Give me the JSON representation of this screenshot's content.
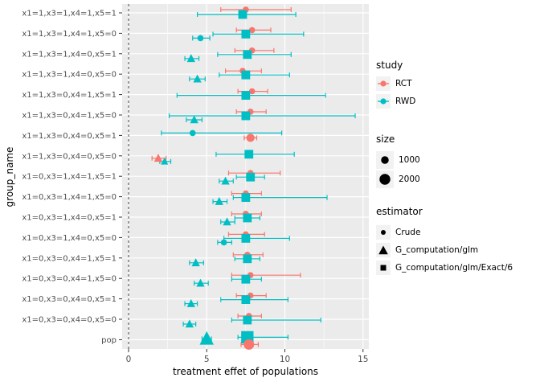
{
  "chart_data": {
    "type": "scatter",
    "title": "",
    "xlabel": "treatment effet of populations",
    "ylabel": "group_name",
    "x_ticks": [
      0,
      5,
      10,
      15
    ],
    "xlim": [
      -0.5,
      15.5
    ],
    "ref_line_x": 0,
    "grid": true,
    "legend_position": "right",
    "colors": {
      "RCT": "#F8766D",
      "RWD": "#00BFC4",
      "panel": "#EBEBEB",
      "grid": "#FFFFFF",
      "axis_text": "#4D4D4D",
      "shape_black": "#000000"
    },
    "shape_map": {
      "Crude": "circle",
      "G_computation/glm": "triangle",
      "G_computation/glm/Exact/6": "square"
    },
    "rows": [
      {
        "label": "x1=1,x3=1,x4=1,x5=1",
        "points": [
          {
            "study": "RCT",
            "estimator": "Crude",
            "x": 7.5,
            "lo": 5.9,
            "hi": 10.4,
            "size": 900,
            "dy": -4
          },
          {
            "study": "RWD",
            "estimator": "G_computation/glm/Exact/6",
            "x": 7.3,
            "lo": 4.4,
            "hi": 10.7,
            "size": 1300,
            "dy": 2
          }
        ]
      },
      {
        "label": "x1=1,x3=1,x4=1,x5=0",
        "points": [
          {
            "study": "RCT",
            "estimator": "Crude",
            "x": 7.9,
            "lo": 6.9,
            "hi": 9.1,
            "size": 900,
            "dy": -4
          },
          {
            "study": "RWD",
            "estimator": "Crude",
            "x": 4.6,
            "lo": 4.1,
            "hi": 5.2,
            "size": 900,
            "dy": 6
          },
          {
            "study": "RWD",
            "estimator": "G_computation/glm/Exact/6",
            "x": 7.5,
            "lo": 5.4,
            "hi": 11.2,
            "size": 1300,
            "dy": 1
          }
        ]
      },
      {
        "label": "x1=1,x3=1,x4=0,x5=1",
        "points": [
          {
            "study": "RCT",
            "estimator": "Crude",
            "x": 7.9,
            "lo": 6.8,
            "hi": 9.3,
            "size": 900,
            "dy": -4
          },
          {
            "study": "RWD",
            "estimator": "G_computation/glm",
            "x": 4.0,
            "lo": 3.6,
            "hi": 4.5,
            "size": 900,
            "dy": 6
          },
          {
            "study": "RWD",
            "estimator": "G_computation/glm/Exact/6",
            "x": 7.6,
            "lo": 5.7,
            "hi": 10.4,
            "size": 1300,
            "dy": 1
          }
        ]
      },
      {
        "label": "x1=1,x3=1,x4=0,x5=0",
        "points": [
          {
            "study": "RCT",
            "estimator": "Crude",
            "x": 7.3,
            "lo": 6.2,
            "hi": 8.5,
            "size": 900,
            "dy": -4
          },
          {
            "study": "RWD",
            "estimator": "G_computation/glm",
            "x": 4.4,
            "lo": 3.9,
            "hi": 4.9,
            "size": 900,
            "dy": 6
          },
          {
            "study": "RWD",
            "estimator": "G_computation/glm/Exact/6",
            "x": 7.5,
            "lo": 5.8,
            "hi": 10.3,
            "size": 1300,
            "dy": 1
          }
        ]
      },
      {
        "label": "x1=1,x3=0,x4=1,x5=1",
        "points": [
          {
            "study": "RCT",
            "estimator": "Crude",
            "x": 7.9,
            "lo": 7.0,
            "hi": 8.9,
            "size": 900,
            "dy": -4
          },
          {
            "study": "RWD",
            "estimator": "G_computation/glm/Exact/6",
            "x": 7.5,
            "lo": 3.1,
            "hi": 12.6,
            "size": 1300,
            "dy": 1
          }
        ]
      },
      {
        "label": "x1=1,x3=0,x4=1,x5=0",
        "points": [
          {
            "study": "RCT",
            "estimator": "Crude",
            "x": 7.8,
            "lo": 6.9,
            "hi": 8.8,
            "size": 900,
            "dy": -4
          },
          {
            "study": "RWD",
            "estimator": "G_computation/glm",
            "x": 4.2,
            "lo": 3.7,
            "hi": 4.7,
            "size": 900,
            "dy": 6
          },
          {
            "study": "RWD",
            "estimator": "G_computation/glm/Exact/6",
            "x": 7.5,
            "lo": 2.6,
            "hi": 14.5,
            "size": 1300,
            "dy": 1
          }
        ]
      },
      {
        "label": "x1=1,x3=0,x4=0,x5=1",
        "points": [
          {
            "study": "RWD",
            "estimator": "Crude",
            "x": 4.1,
            "lo": 2.1,
            "hi": 9.8,
            "size": 900,
            "dy": -3
          },
          {
            "study": "RCT",
            "estimator": "Crude",
            "x": 7.8,
            "lo": 7.4,
            "hi": 8.2,
            "size": 1600,
            "dy": 3
          }
        ]
      },
      {
        "label": "x1=1,x3=0,x4=0,x5=0",
        "points": [
          {
            "study": "RCT",
            "estimator": "G_computation/glm",
            "x": 1.9,
            "lo": 1.5,
            "hi": 2.4,
            "size": 900,
            "dy": 3
          },
          {
            "study": "RWD",
            "estimator": "G_computation/glm",
            "x": 2.3,
            "lo": 2.0,
            "hi": 2.7,
            "size": 700,
            "dy": 7
          },
          {
            "study": "RWD",
            "estimator": "G_computation/glm/Exact/6",
            "x": 7.7,
            "lo": 5.6,
            "hi": 10.6,
            "size": 1300,
            "dy": -2
          }
        ]
      },
      {
        "label": "x1=0,x3=1,x4=1,x5=1",
        "points": [
          {
            "study": "RCT",
            "estimator": "Crude",
            "x": 7.8,
            "lo": 6.4,
            "hi": 9.7,
            "size": 900,
            "dy": -4
          },
          {
            "study": "RWD",
            "estimator": "G_computation/glm",
            "x": 6.2,
            "lo": 5.8,
            "hi": 6.7,
            "size": 900,
            "dy": 6
          },
          {
            "study": "RWD",
            "estimator": "G_computation/glm/Exact/6",
            "x": 7.8,
            "lo": 6.9,
            "hi": 8.7,
            "size": 1300,
            "dy": 1
          }
        ]
      },
      {
        "label": "x1=0,x3=1,x4=1,x5=0",
        "points": [
          {
            "study": "RCT",
            "estimator": "Crude",
            "x": 7.5,
            "lo": 6.6,
            "hi": 8.5,
            "size": 900,
            "dy": -4
          },
          {
            "study": "RWD",
            "estimator": "G_computation/glm",
            "x": 5.8,
            "lo": 5.4,
            "hi": 6.3,
            "size": 900,
            "dy": 6
          },
          {
            "study": "RWD",
            "estimator": "G_computation/glm/Exact/6",
            "x": 7.5,
            "lo": 6.7,
            "hi": 12.7,
            "size": 1300,
            "dy": 1
          }
        ]
      },
      {
        "label": "x1=0,x3=1,x4=0,x5=1",
        "points": [
          {
            "study": "RCT",
            "estimator": "Crude",
            "x": 7.5,
            "lo": 6.6,
            "hi": 8.5,
            "size": 900,
            "dy": -4
          },
          {
            "study": "RWD",
            "estimator": "G_computation/glm",
            "x": 6.3,
            "lo": 5.9,
            "hi": 6.8,
            "size": 900,
            "dy": 6
          },
          {
            "study": "RWD",
            "estimator": "G_computation/glm/Exact/6",
            "x": 7.6,
            "lo": 6.8,
            "hi": 8.4,
            "size": 1300,
            "dy": 1
          }
        ]
      },
      {
        "label": "x1=0,x3=1,x4=0,x5=0",
        "points": [
          {
            "study": "RCT",
            "estimator": "Crude",
            "x": 7.5,
            "lo": 6.4,
            "hi": 8.7,
            "size": 900,
            "dy": -4
          },
          {
            "study": "RWD",
            "estimator": "Crude",
            "x": 6.1,
            "lo": 5.7,
            "hi": 6.6,
            "size": 900,
            "dy": 6
          },
          {
            "study": "RWD",
            "estimator": "G_computation/glm/Exact/6",
            "x": 7.5,
            "lo": 6.1,
            "hi": 10.3,
            "size": 1300,
            "dy": 1
          }
        ]
      },
      {
        "label": "x1=0,x3=0,x4=1,x5=1",
        "points": [
          {
            "study": "RCT",
            "estimator": "Crude",
            "x": 7.6,
            "lo": 6.7,
            "hi": 8.6,
            "size": 900,
            "dy": -4
          },
          {
            "study": "RWD",
            "estimator": "G_computation/glm",
            "x": 4.3,
            "lo": 3.9,
            "hi": 4.8,
            "size": 900,
            "dy": 6
          },
          {
            "study": "RWD",
            "estimator": "G_computation/glm/Exact/6",
            "x": 7.6,
            "lo": 6.8,
            "hi": 8.4,
            "size": 1300,
            "dy": 1
          }
        ]
      },
      {
        "label": "x1=0,x3=0,x4=1,x5=0",
        "points": [
          {
            "study": "RCT",
            "estimator": "Crude",
            "x": 7.8,
            "lo": 6.6,
            "hi": 11.0,
            "size": 900,
            "dy": -4
          },
          {
            "study": "RWD",
            "estimator": "G_computation/glm",
            "x": 4.6,
            "lo": 4.2,
            "hi": 5.1,
            "size": 900,
            "dy": 6
          },
          {
            "study": "RWD",
            "estimator": "G_computation/glm/Exact/6",
            "x": 7.5,
            "lo": 6.6,
            "hi": 8.5,
            "size": 1300,
            "dy": 1
          }
        ]
      },
      {
        "label": "x1=0,x3=0,x4=0,x5=1",
        "points": [
          {
            "study": "RCT",
            "estimator": "Crude",
            "x": 7.8,
            "lo": 6.9,
            "hi": 8.8,
            "size": 900,
            "dy": -4
          },
          {
            "study": "RWD",
            "estimator": "G_computation/glm",
            "x": 4.0,
            "lo": 3.6,
            "hi": 4.4,
            "size": 900,
            "dy": 6
          },
          {
            "study": "RWD",
            "estimator": "G_computation/glm/Exact/6",
            "x": 7.5,
            "lo": 5.9,
            "hi": 10.2,
            "size": 1300,
            "dy": 1
          }
        ]
      },
      {
        "label": "x1=0,x3=0,x4=0,x5=0",
        "points": [
          {
            "study": "RCT",
            "estimator": "Crude",
            "x": 7.7,
            "lo": 7.0,
            "hi": 8.5,
            "size": 900,
            "dy": -4
          },
          {
            "study": "RWD",
            "estimator": "G_computation/glm",
            "x": 3.9,
            "lo": 3.5,
            "hi": 4.3,
            "size": 900,
            "dy": 6
          },
          {
            "study": "RWD",
            "estimator": "G_computation/glm/Exact/6",
            "x": 7.6,
            "lo": 6.6,
            "hi": 12.3,
            "size": 1300,
            "dy": 1
          }
        ]
      },
      {
        "label": "pop",
        "points": [
          {
            "study": "RWD",
            "estimator": "G_computation/glm",
            "x": 5.0,
            "lo": 4.7,
            "hi": 5.3,
            "size": 2600,
            "dy": -1
          },
          {
            "study": "RWD",
            "estimator": "G_computation/glm/Exact/6",
            "x": 7.6,
            "lo": 7.0,
            "hi": 10.2,
            "size": 2600,
            "dy": -3
          },
          {
            "study": "RCT",
            "estimator": "Crude",
            "x": 7.7,
            "lo": 7.2,
            "hi": 8.3,
            "size": 2600,
            "dy": 6
          }
        ]
      }
    ]
  },
  "legends": {
    "study": {
      "title": "study",
      "items": [
        {
          "label": "RCT",
          "color": "#F8766D"
        },
        {
          "label": "RWD",
          "color": "#00BFC4"
        }
      ]
    },
    "size": {
      "title": "size",
      "items": [
        {
          "label": "1000",
          "value": 1000
        },
        {
          "label": "2000",
          "value": 2000
        }
      ]
    },
    "estimator": {
      "title": "estimator",
      "items": [
        {
          "label": "Crude",
          "shape": "circle"
        },
        {
          "label": "G_computation/glm",
          "shape": "triangle"
        },
        {
          "label": "G_computation/glm/Exact/6",
          "shape": "square"
        }
      ]
    }
  }
}
